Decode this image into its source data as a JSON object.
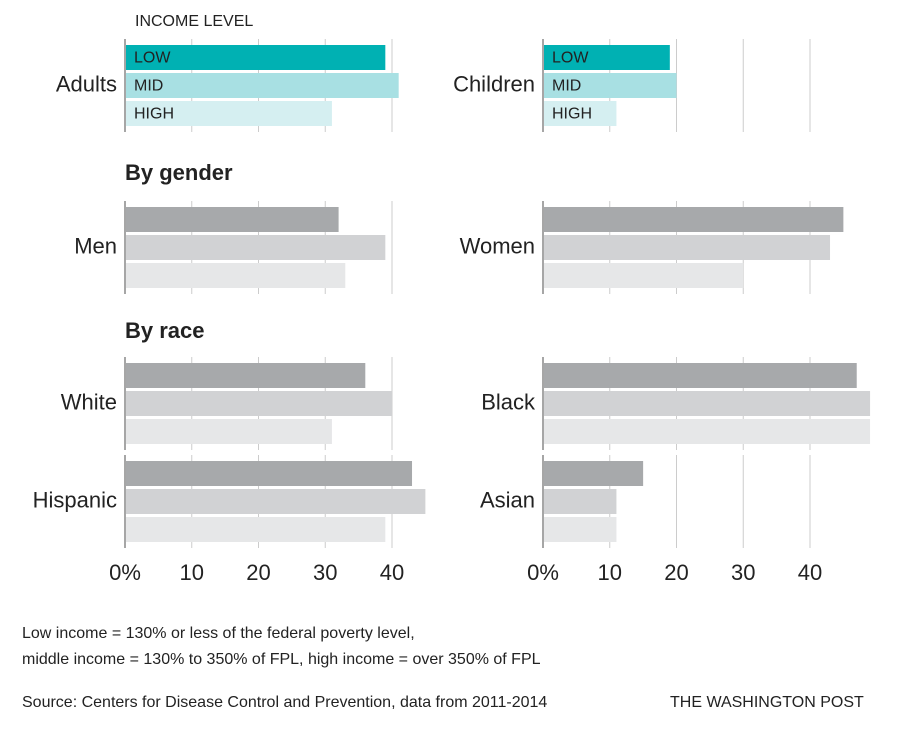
{
  "chart_data": [
    {
      "type": "bar",
      "orientation": "horizontal",
      "xlim": [
        0,
        50
      ],
      "xticks": [
        {
          "value": 0,
          "label": "0%"
        },
        10,
        20,
        30,
        40
      ],
      "panels": [
        {
          "label": "Adults",
          "categories": [
            "LOW",
            "MID",
            "HIGH"
          ],
          "values": [
            39,
            41,
            31
          ],
          "colors": [
            "#00b1b3",
            "#a8e0e3",
            "#d5eff1"
          ]
        },
        {
          "label": "Men",
          "values": [
            32,
            39,
            33
          ],
          "colors": [
            "#a7a9ab",
            "#d1d2d4",
            "#e6e7e8"
          ]
        },
        {
          "label": "White",
          "values": [
            36,
            40,
            31
          ],
          "colors": [
            "#a7a9ab",
            "#d1d2d4",
            "#e6e7e8"
          ]
        },
        {
          "label": "Hispanic",
          "values": [
            43,
            45,
            39
          ],
          "colors": [
            "#a7a9ab",
            "#d1d2d4",
            "#e6e7e8"
          ]
        }
      ]
    },
    {
      "type": "bar",
      "orientation": "horizontal",
      "xlim": [
        0,
        50
      ],
      "xticks": [
        {
          "value": 0,
          "label": "0%"
        },
        10,
        20,
        30,
        40
      ],
      "panels": [
        {
          "label": "Children",
          "categories": [
            "LOW",
            "MID",
            "HIGH"
          ],
          "values": [
            19,
            20,
            11
          ],
          "colors": [
            "#00b1b3",
            "#a8e0e3",
            "#d5eff1"
          ]
        },
        {
          "label": "Women",
          "values": [
            45,
            43,
            30
          ],
          "colors": [
            "#a7a9ab",
            "#d1d2d4",
            "#e6e7e8"
          ]
        },
        {
          "label": "Black",
          "values": [
            47,
            49,
            49
          ],
          "colors": [
            "#a7a9ab",
            "#d1d2d4",
            "#e6e7e8"
          ]
        },
        {
          "label": "Asian",
          "values": [
            15,
            11,
            11
          ],
          "colors": [
            "#a7a9ab",
            "#d1d2d4",
            "#e6e7e8"
          ]
        }
      ]
    }
  ],
  "legend_title": "INCOME LEVEL",
  "sections": [
    "By gender",
    "By race"
  ],
  "notes": [
    "Low income = 130% or less of the federal poverty level,",
    "middle income = 130% to 350% of FPL, high income = over 350% of FPL"
  ],
  "source": "Source: Centers for Disease Control and Prevention, data from 2011-2014",
  "credit": "THE WASHINGTON POST"
}
